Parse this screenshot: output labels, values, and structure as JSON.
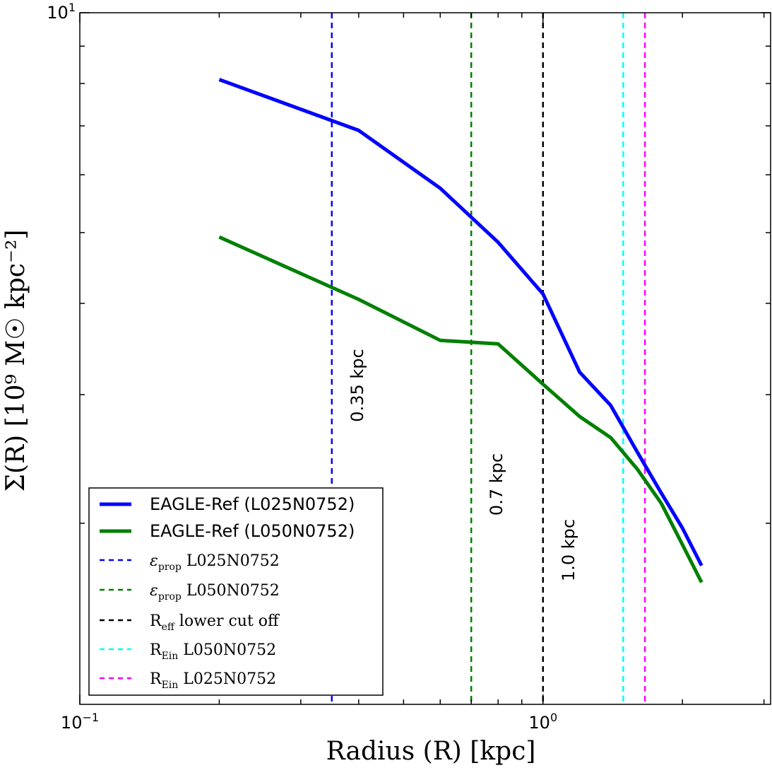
{
  "chart_data": {
    "type": "line",
    "x_scale": "log",
    "y_scale": "log",
    "xlim": [
      0.1,
      3.1
    ],
    "ylim": [
      1.13,
      10
    ],
    "xlabel": "Radius (R) [kpc]",
    "ylabel": "Σ(R) [10⁹ M☉ kpc⁻²]",
    "x_tick_labels": [
      {
        "value": 0.1,
        "base": "10",
        "exp": "−1"
      },
      {
        "value": 1.0,
        "base": "10",
        "exp": "0"
      }
    ],
    "y_tick_labels": [
      {
        "value": 10,
        "base": "10",
        "exp": "1"
      }
    ],
    "y_minor_ticks": [
      2,
      3,
      4,
      5,
      6,
      7,
      8,
      9
    ],
    "series": [
      {
        "name": "EAGLE-Ref (L025N0752)",
        "color": "#0000ff",
        "style": "solid",
        "x": [
          0.2,
          0.4,
          0.6,
          0.8,
          1.0,
          1.2,
          1.4,
          1.6,
          1.8,
          2.0,
          2.2
        ],
        "y": [
          8.1,
          6.9,
          5.75,
          4.85,
          4.12,
          3.22,
          2.9,
          2.5,
          2.2,
          1.97,
          1.75
        ]
      },
      {
        "name": "EAGLE-Ref (L050N0752)",
        "color": "#008000",
        "style": "solid",
        "x": [
          0.2,
          0.4,
          0.6,
          0.8,
          1.0,
          1.2,
          1.4,
          1.6,
          1.8,
          2.0,
          2.2
        ],
        "y": [
          4.93,
          4.05,
          3.56,
          3.52,
          3.1,
          2.8,
          2.62,
          2.37,
          2.13,
          1.87,
          1.66
        ]
      }
    ],
    "vlines": [
      {
        "name": "ε_prop L025N0752",
        "x": 0.35,
        "color": "#0000ff",
        "style": "dashed",
        "label": "0.35 kpc"
      },
      {
        "name": "ε_prop L050N0752",
        "x": 0.7,
        "color": "#008000",
        "style": "dashed",
        "label": "0.7 kpc"
      },
      {
        "name": "R_eff lower cut off",
        "x": 1.0,
        "color": "#000000",
        "style": "dashed",
        "label": "1.0 kpc"
      },
      {
        "name": "R_Ein L050N0752",
        "x": 1.49,
        "color": "#00ffff",
        "style": "dashed",
        "label": ""
      },
      {
        "name": "R_Ein L025N0752",
        "x": 1.66,
        "color": "#ff00ff",
        "style": "dashed",
        "label": ""
      }
    ],
    "legend": {
      "placement": "bottom-left",
      "entries": [
        {
          "main": "EAGLE-Ref (L025N0752)",
          "sub": "",
          "rest": "",
          "color": "#0000ff",
          "style": "solid"
        },
        {
          "main": "EAGLE-Ref (L050N0752)",
          "sub": "",
          "rest": "",
          "color": "#008000",
          "style": "solid"
        },
        {
          "main": "ε",
          "sub": "prop",
          "rest": " L025N0752",
          "color": "#0000ff",
          "style": "dashed"
        },
        {
          "main": "ε",
          "sub": "prop",
          "rest": " L050N0752",
          "color": "#008000",
          "style": "dashed"
        },
        {
          "main": "R",
          "sub": "eff",
          "rest": " lower cut off",
          "color": "#000000",
          "style": "dashed"
        },
        {
          "main": "R",
          "sub": "Ein",
          "rest": " L050N0752",
          "color": "#00ffff",
          "style": "dashed"
        },
        {
          "main": "R",
          "sub": "Ein",
          "rest": " L025N0752",
          "color": "#ff00ff",
          "style": "dashed"
        }
      ]
    }
  }
}
